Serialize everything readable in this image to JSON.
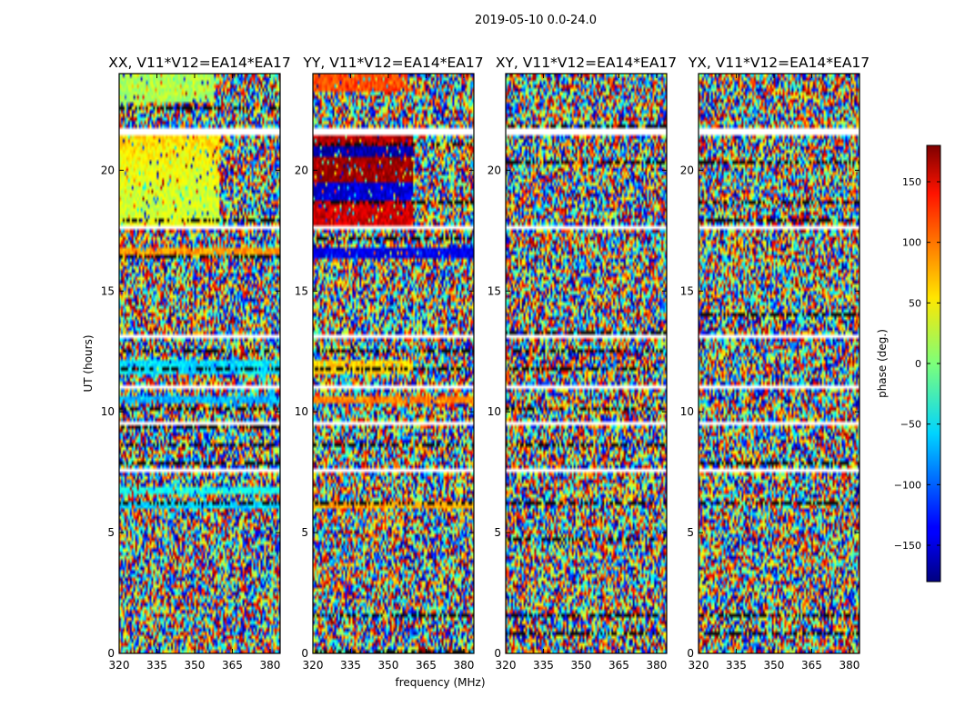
{
  "chart_data": {
    "type": "heatmap",
    "title": "2019-05-10 0.0-24.0",
    "xlabel": "frequency (MHz)",
    "ylabel": "UT (hours)",
    "xlim": [
      320,
      384
    ],
    "ylim": [
      0,
      24
    ],
    "x_ticks": [
      320,
      335,
      350,
      365,
      380
    ],
    "y_ticks": [
      0,
      5,
      10,
      15,
      20
    ],
    "colorbar": {
      "label": "phase (deg.)",
      "colormap": "jet",
      "range": [
        -180,
        180
      ],
      "ticks": [
        150,
        100,
        50,
        0,
        -50,
        -100,
        -150
      ],
      "tick_labels": [
        "150",
        "100",
        "50",
        "0",
        "−50",
        "−100",
        "−150"
      ]
    },
    "panels": [
      {
        "title": "XX, V11*V12=EA14*EA17",
        "coherent_bands": [
          {
            "t0": 21.0,
            "t1": 21.45,
            "f1": 360,
            "phase": 55
          },
          {
            "t0": 20.4,
            "t1": 21.0,
            "f1": 360,
            "phase": 48
          },
          {
            "t0": 19.4,
            "t1": 20.4,
            "f1": 360,
            "phase": 40
          },
          {
            "t0": 18.0,
            "t1": 19.4,
            "f1": 360,
            "phase": 28
          },
          {
            "t0": 17.7,
            "t1": 18.0,
            "f1": 360,
            "phase": 38
          },
          {
            "t0": 16.5,
            "t1": 16.8,
            "f1": 384,
            "phase": 80
          },
          {
            "t0": 11.6,
            "t1": 12.1,
            "f1": 384,
            "phase": -55
          },
          {
            "t0": 10.3,
            "t1": 10.65,
            "f1": 384,
            "phase": -72
          },
          {
            "t0": 6.05,
            "t1": 6.35,
            "f1": 384,
            "phase": -62
          },
          {
            "t0": 6.6,
            "t1": 6.85,
            "f1": 384,
            "phase": -40
          },
          {
            "t0": 22.8,
            "t1": 24.0,
            "f1": 358,
            "phase": 15
          },
          {
            "t0": 23.3,
            "t1": 23.6,
            "f1": 358,
            "phase": 70
          }
        ]
      },
      {
        "title": "YY, V11*V12=EA14*EA17",
        "coherent_bands": [
          {
            "t0": 21.0,
            "t1": 21.45,
            "f1": 360,
            "phase": 165
          },
          {
            "t0": 20.5,
            "t1": 21.0,
            "f1": 360,
            "phase": -165
          },
          {
            "t0": 19.5,
            "t1": 20.5,
            "f1": 360,
            "phase": 172
          },
          {
            "t0": 18.7,
            "t1": 19.5,
            "f1": 360,
            "phase": -150
          },
          {
            "t0": 17.7,
            "t1": 18.7,
            "f1": 360,
            "phase": 150
          },
          {
            "t0": 16.4,
            "t1": 16.8,
            "f1": 384,
            "phase": -140
          },
          {
            "t0": 11.6,
            "t1": 12.1,
            "f1": 360,
            "phase": 60
          },
          {
            "t0": 10.3,
            "t1": 10.65,
            "f1": 384,
            "phase": 90
          },
          {
            "t0": 6.05,
            "t1": 6.35,
            "f1": 384,
            "phase": 75
          },
          {
            "t0": 23.3,
            "t1": 24.0,
            "f1": 358,
            "phase": 110
          }
        ]
      },
      {
        "title": "XY, V11*V12=EA14*EA17",
        "coherent_bands": []
      },
      {
        "title": "YX, V11*V12=EA14*EA17",
        "coherent_bands": []
      }
    ],
    "flagged_intervals_hours": [
      [
        21.45,
        21.75
      ],
      [
        17.6,
        17.7
      ],
      [
        11.35,
        11.45
      ],
      [
        10.9,
        11.05
      ],
      [
        10.15,
        10.25
      ],
      [
        7.5,
        7.6
      ],
      [
        6.4,
        6.5
      ],
      [
        5.95,
        6.02
      ],
      [
        22.95,
        23.0
      ],
      [
        13.1,
        13.15
      ],
      [
        8.65,
        8.72
      ],
      [
        3.6,
        3.65
      ],
      [
        12.4,
        12.45
      ],
      [
        9.5,
        9.55
      ]
    ]
  }
}
